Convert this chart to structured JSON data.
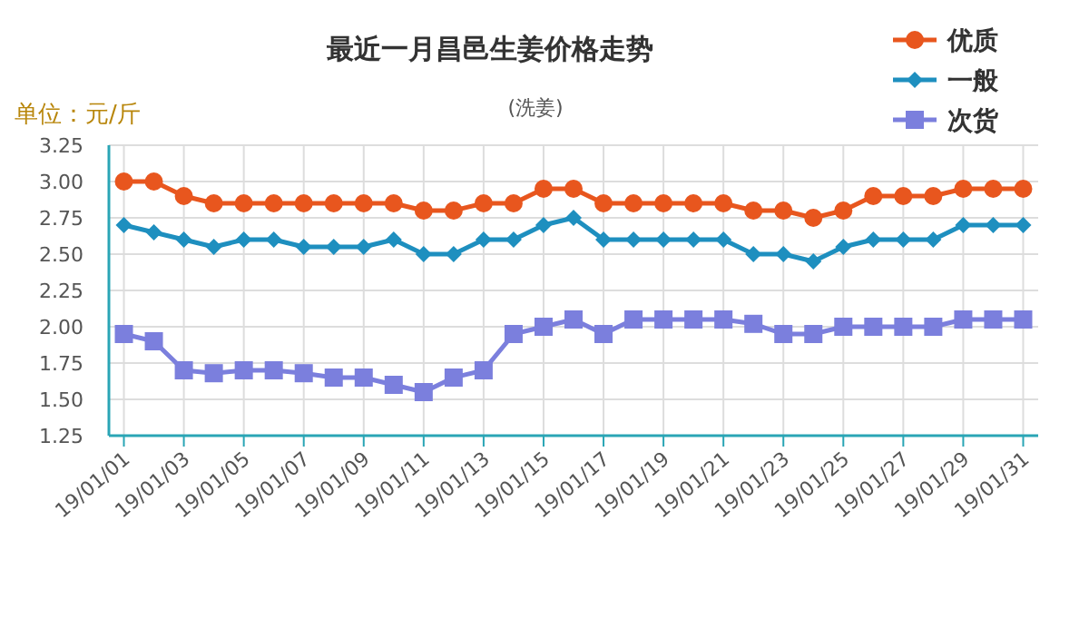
{
  "chart_data": {
    "type": "line",
    "title": "最近一月昌邑生姜价格走势",
    "subtitle": "(洗姜)",
    "ylabel": "单位：元/斤",
    "categories": [
      "19/01/01",
      null,
      "19/01/03",
      null,
      "19/01/05",
      null,
      "19/01/07",
      null,
      "19/01/09",
      null,
      "19/01/11",
      null,
      "19/01/13",
      null,
      "19/01/15",
      null,
      "19/01/17",
      null,
      "19/01/19",
      null,
      "19/01/21",
      null,
      "19/01/23",
      null,
      "19/01/25",
      null,
      "19/01/27",
      null,
      "19/01/29",
      null,
      "19/01/31"
    ],
    "series": [
      {
        "name": "优质",
        "color": "#e8561e",
        "marker": "circle",
        "values": [
          3.0,
          3.0,
          2.9,
          2.85,
          2.85,
          2.85,
          2.85,
          2.85,
          2.85,
          2.85,
          2.8,
          2.8,
          2.85,
          2.85,
          2.95,
          2.95,
          2.85,
          2.85,
          2.85,
          2.85,
          2.85,
          2.8,
          2.8,
          2.75,
          2.8,
          2.9,
          2.9,
          2.9,
          2.95,
          2.95,
          2.95
        ]
      },
      {
        "name": "一般",
        "color": "#1e8fbf",
        "marker": "diamond",
        "values": [
          2.7,
          2.65,
          2.6,
          2.55,
          2.6,
          2.6,
          2.55,
          2.55,
          2.55,
          2.6,
          2.5,
          2.5,
          2.6,
          2.6,
          2.7,
          2.75,
          2.6,
          2.6,
          2.6,
          2.6,
          2.6,
          2.5,
          2.5,
          2.45,
          2.55,
          2.6,
          2.6,
          2.6,
          2.7,
          2.7,
          2.7
        ]
      },
      {
        "name": "次货",
        "color": "#7b7fdd",
        "marker": "square",
        "values": [
          1.95,
          1.9,
          1.7,
          1.68,
          1.7,
          1.7,
          1.68,
          1.65,
          1.65,
          1.6,
          1.55,
          1.65,
          1.7,
          1.95,
          2.0,
          2.05,
          1.95,
          2.05,
          2.05,
          2.05,
          2.05,
          2.02,
          1.95,
          1.95,
          2.0,
          2.0,
          2.0,
          2.0,
          2.05,
          2.05,
          2.05
        ]
      }
    ],
    "ylim": [
      1.25,
      3.25
    ],
    "yticks": [
      {
        "value": 1.25,
        "label": "1.25"
      },
      {
        "value": 1.5,
        "label": "1.50"
      },
      {
        "value": 1.75,
        "label": "1.75"
      },
      {
        "value": 2.0,
        "label": "2.00"
      },
      {
        "value": 2.25,
        "label": "2.25"
      },
      {
        "value": 2.5,
        "label": "2.50"
      },
      {
        "value": 2.75,
        "label": "2.75"
      },
      {
        "value": 3.0,
        "label": "3.00"
      },
      {
        "value": 3.25,
        "label": "3.25"
      }
    ],
    "grid": true,
    "legend": "top right"
  }
}
